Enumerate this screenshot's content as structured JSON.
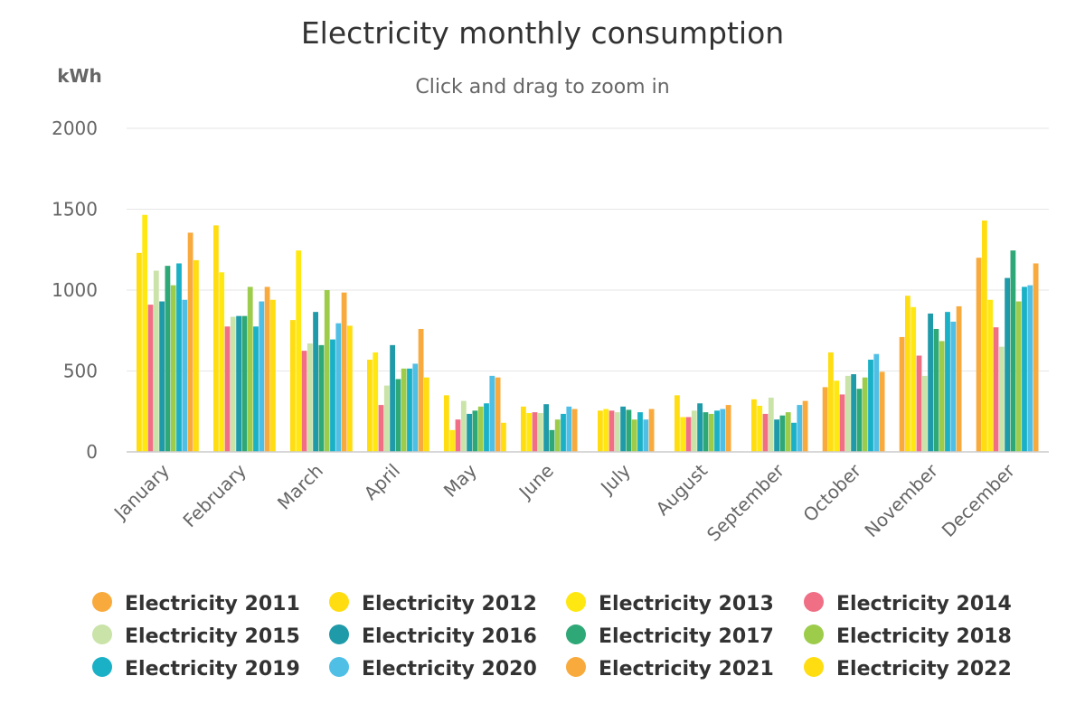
{
  "chart_data": {
    "type": "bar",
    "title": "Electricity monthly consumption",
    "subtitle": "Click and drag to zoom in",
    "ylabel": "kWh",
    "xlabel": "",
    "ylim": [
      0,
      2000
    ],
    "yticks": [
      0,
      500,
      1000,
      1500,
      2000
    ],
    "grid": true,
    "legend_position": "bottom",
    "categories": [
      "January",
      "February",
      "March",
      "April",
      "May",
      "June",
      "July",
      "August",
      "September",
      "October",
      "November",
      "December"
    ],
    "series": [
      {
        "name": "Electricity 2011",
        "color": "#f9aa3c",
        "values": [
          null,
          null,
          null,
          null,
          null,
          null,
          null,
          null,
          null,
          400,
          710,
          1200
        ]
      },
      {
        "name": "Electricity 2012",
        "color": "#ffdd11",
        "values": [
          1230,
          1400,
          815,
          570,
          350,
          280,
          255,
          350,
          325,
          615,
          965,
          1430
        ]
      },
      {
        "name": "Electricity 2013",
        "color": "#ffe812",
        "values": [
          1465,
          1110,
          1245,
          615,
          135,
          240,
          265,
          215,
          285,
          440,
          895,
          940
        ]
      },
      {
        "name": "Electricity 2014",
        "color": "#f06f85",
        "values": [
          910,
          775,
          625,
          290,
          200,
          245,
          255,
          215,
          235,
          355,
          595,
          770
        ]
      },
      {
        "name": "Electricity 2015",
        "color": "#c9e3a8",
        "values": [
          1120,
          835,
          670,
          410,
          315,
          240,
          245,
          255,
          335,
          470,
          470,
          650
        ]
      },
      {
        "name": "Electricity 2016",
        "color": "#1e9aa8",
        "values": [
          930,
          840,
          865,
          660,
          235,
          295,
          280,
          300,
          200,
          480,
          855,
          1075
        ]
      },
      {
        "name": "Electricity 2017",
        "color": "#2fa877",
        "values": [
          1150,
          840,
          660,
          450,
          255,
          135,
          260,
          245,
          225,
          390,
          760,
          1245
        ]
      },
      {
        "name": "Electricity 2018",
        "color": "#9ccc4a",
        "values": [
          1030,
          1020,
          1000,
          515,
          280,
          200,
          200,
          235,
          245,
          460,
          685,
          930
        ]
      },
      {
        "name": "Electricity 2019",
        "color": "#1ab1c6",
        "values": [
          1165,
          775,
          695,
          515,
          300,
          235,
          245,
          255,
          180,
          570,
          865,
          1020
        ]
      },
      {
        "name": "Electricity 2020",
        "color": "#4fbfe6",
        "values": [
          940,
          930,
          795,
          545,
          470,
          280,
          200,
          265,
          290,
          605,
          805,
          1030
        ]
      },
      {
        "name": "Electricity 2021",
        "color": "#f9aa3c",
        "values": [
          1355,
          1020,
          985,
          760,
          460,
          265,
          265,
          290,
          315,
          495,
          900,
          1165
        ]
      },
      {
        "name": "Electricity 2022",
        "color": "#ffdd11",
        "values": [
          1185,
          940,
          780,
          460,
          180,
          null,
          null,
          null,
          null,
          null,
          null,
          null
        ]
      }
    ]
  }
}
